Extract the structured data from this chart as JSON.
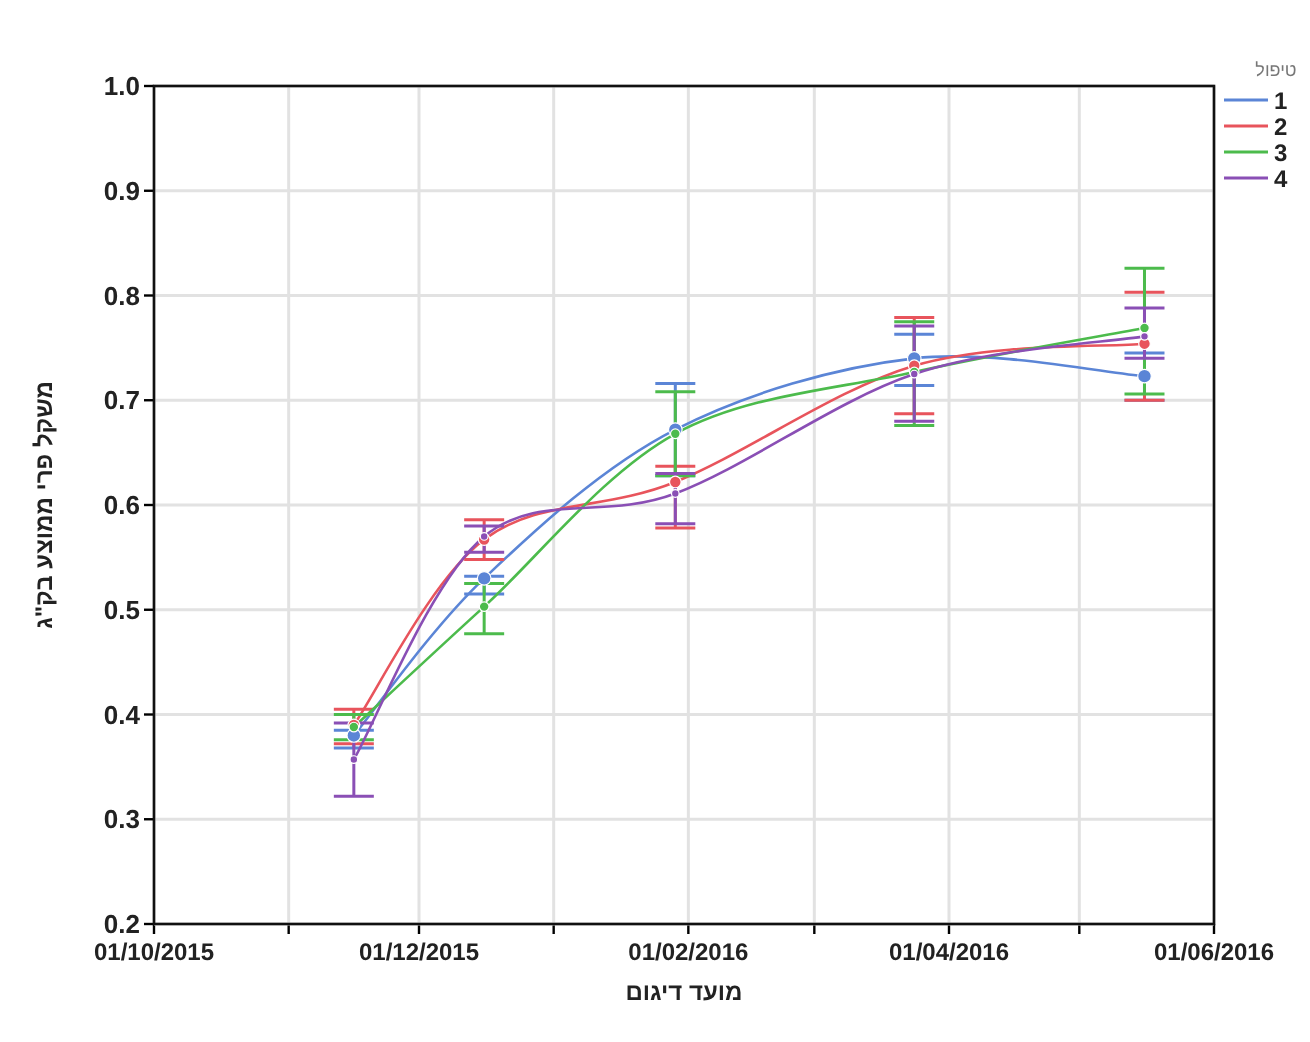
{
  "chart_data": {
    "type": "line",
    "xlabel": "מועד דיגום",
    "ylabel": "משקל פרי ממוצע בק\"ג",
    "legend_title": "טיפול",
    "x": [
      "2015-11-16",
      "2015-12-16",
      "2016-01-29",
      "2016-03-24",
      "2016-05-16"
    ],
    "series": [
      {
        "name": "1",
        "color": "#5b85d6",
        "values": [
          0.38,
          0.53,
          0.672,
          0.74,
          0.723
        ],
        "errors": [
          [
            0.368,
            0.385
          ],
          [
            0.515,
            0.532
          ],
          [
            0.628,
            0.716
          ],
          [
            0.714,
            0.763
          ],
          [
            0.7,
            0.745
          ]
        ]
      },
      {
        "name": "2",
        "color": "#e8545c",
        "values": [
          0.39,
          0.567,
          0.622,
          0.733,
          0.754
        ],
        "errors": [
          [
            0.372,
            0.405
          ],
          [
            0.548,
            0.586
          ],
          [
            0.578,
            0.637
          ],
          [
            0.687,
            0.779
          ],
          [
            0.7,
            0.803
          ]
        ]
      },
      {
        "name": "3",
        "color": "#4cbb4c",
        "values": [
          0.388,
          0.503,
          0.668,
          0.727,
          0.769
        ],
        "errors": [
          [
            0.376,
            0.4
          ],
          [
            0.477,
            0.525
          ],
          [
            0.628,
            0.708
          ],
          [
            0.676,
            0.775
          ],
          [
            0.706,
            0.826
          ]
        ]
      },
      {
        "name": "4",
        "color": "#8a4fb5",
        "values": [
          0.357,
          0.57,
          0.611,
          0.725,
          0.761
        ],
        "errors": [
          [
            0.322,
            0.392
          ],
          [
            0.555,
            0.58
          ],
          [
            0.582,
            0.63
          ],
          [
            0.68,
            0.771
          ],
          [
            0.74,
            0.788
          ]
        ]
      }
    ],
    "xlim": [
      "2015-10-01",
      "2016-06-01"
    ],
    "xticks": [
      {
        "value": "2015-10-01",
        "label": "01/10/2015"
      },
      {
        "value": "2015-11-01",
        "label": null
      },
      {
        "value": "2015-12-01",
        "label": "01/12/2015"
      },
      {
        "value": "2016-01-01",
        "label": null
      },
      {
        "value": "2016-02-01",
        "label": "01/02/2016"
      },
      {
        "value": "2016-03-01",
        "label": null
      },
      {
        "value": "2016-04-01",
        "label": "01/04/2016"
      },
      {
        "value": "2016-05-01",
        "label": null
      },
      {
        "value": "2016-06-01",
        "label": "01/06/2016"
      }
    ],
    "ylim": [
      0.2,
      1.0
    ],
    "yticks": [
      0.2,
      0.3,
      0.4,
      0.5,
      0.6,
      0.7,
      0.8,
      0.9,
      {
        "value": 1.0,
        "label": "1.0"
      }
    ],
    "grid": true,
    "legend": "top right",
    "marker": "circle",
    "line_style": "solid"
  }
}
